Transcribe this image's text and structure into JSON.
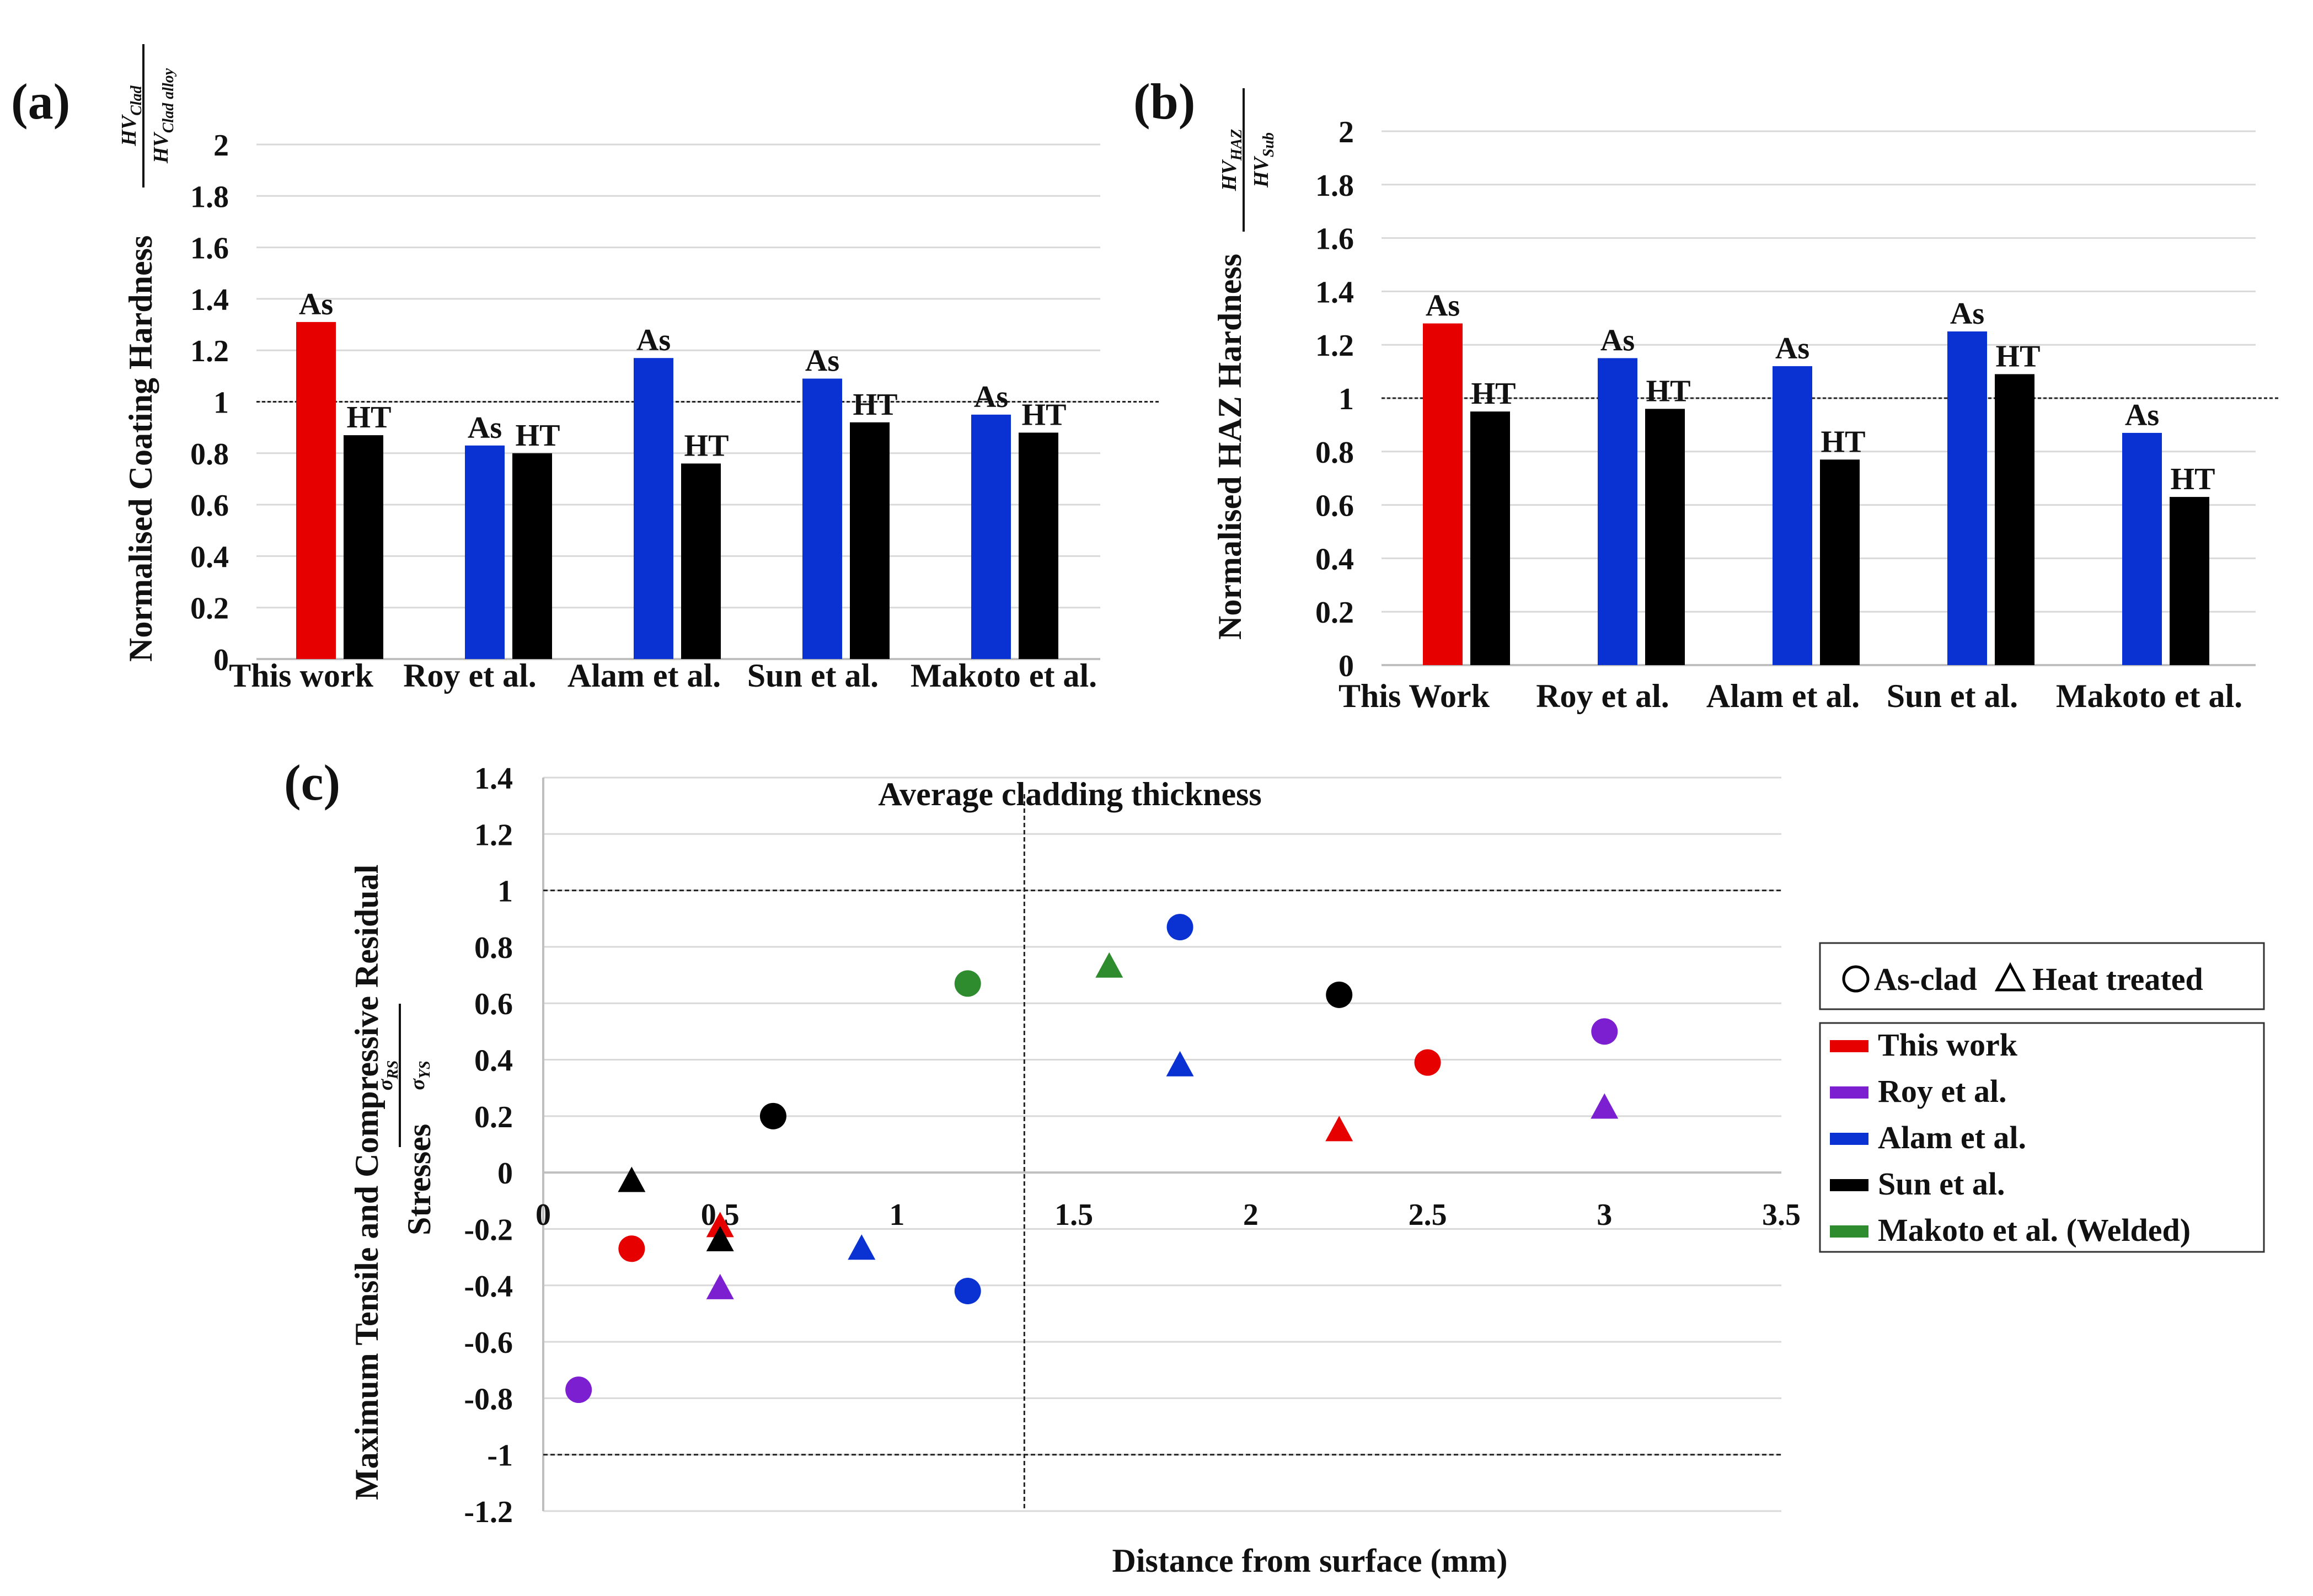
{
  "panel_a": {
    "label": "(a)",
    "ylabel": "Normalised Coating Hardness",
    "ylabel_frac": {
      "num": "HV",
      "num_sub": "Clad",
      "den": "HV",
      "den_sub": "Clad alloy"
    },
    "chart_data": {
      "type": "bar",
      "categories": [
        "This work",
        "Roy et al.",
        "Alam et al.",
        "Sun et al.",
        "Makoto et al."
      ],
      "series": [
        {
          "name": "As",
          "values": [
            1.31,
            0.83,
            1.17,
            1.09,
            0.95
          ],
          "colors": [
            "#e60000",
            "#0a32d2",
            "#0a32d2",
            "#0a32d2",
            "#0a32d2"
          ]
        },
        {
          "name": "HT",
          "values": [
            0.87,
            0.8,
            0.76,
            0.92,
            0.88
          ],
          "colors": [
            "#000000",
            "#000000",
            "#000000",
            "#000000",
            "#000000"
          ]
        }
      ],
      "ylim": [
        0,
        2
      ],
      "yticks": [
        "0",
        "0.2",
        "0.4",
        "0.6",
        "0.8",
        "1",
        "1.2",
        "1.4",
        "1.6",
        "1.8",
        "2"
      ],
      "reference_line": 1,
      "grid": true
    }
  },
  "panel_b": {
    "label": "(b)",
    "ylabel": "Normalised HAZ Hardness",
    "ylabel_frac": {
      "num": "HV",
      "num_sub": "HAZ",
      "den": "HV",
      "den_sub": "Sub"
    },
    "chart_data": {
      "type": "bar",
      "categories": [
        "This Work",
        "Roy et al.",
        "Alam et al.",
        "Sun et al.",
        "Makoto et al."
      ],
      "series": [
        {
          "name": "As",
          "values": [
            1.28,
            1.15,
            1.12,
            1.25,
            0.87
          ],
          "colors": [
            "#e60000",
            "#0a32d2",
            "#0a32d2",
            "#0a32d2",
            "#0a32d2"
          ]
        },
        {
          "name": "HT",
          "values": [
            0.95,
            0.96,
            0.77,
            1.09,
            0.63
          ],
          "colors": [
            "#000000",
            "#000000",
            "#000000",
            "#000000",
            "#000000"
          ]
        }
      ],
      "ylim": [
        0,
        2
      ],
      "yticks": [
        "0",
        "0.2",
        "0.4",
        "0.6",
        "0.8",
        "1",
        "1.2",
        "1.4",
        "1.6",
        "1.8",
        "2"
      ],
      "reference_line": 1,
      "grid": true
    }
  },
  "panel_c": {
    "label": "(c)",
    "ylabel": "Maximum Tensile and Compressive Residual",
    "ylabel2": "Stresses",
    "ylabel_frac": {
      "num": "σ",
      "num_sub": "RS",
      "den": "σ",
      "den_sub": "YS"
    },
    "chart_data": {
      "type": "scatter",
      "xlabel": "Distance from surface (mm)",
      "annotation": "Average cladding thickness",
      "vertical_line_x": 1.36,
      "hlines": [
        1,
        -1
      ],
      "xlim": [
        0,
        3.5
      ],
      "ylim": [
        -1.2,
        1.4
      ],
      "xticks": [
        "0",
        "0.5",
        "1",
        "1.5",
        "2",
        "2.5",
        "3",
        "3.5"
      ],
      "yticks": [
        "-1.2",
        "-1",
        "-0.8",
        "-0.6",
        "-0.4",
        "-0.2",
        "0",
        "0.2",
        "0.4",
        "0.6",
        "0.8",
        "1",
        "1.2",
        "1.4"
      ],
      "series": [
        {
          "name": "This work",
          "color": "#e60000",
          "points": [
            {
              "x": 0.25,
              "y": -0.27,
              "m": "circle"
            },
            {
              "x": 2.5,
              "y": 0.39,
              "m": "circle"
            },
            {
              "x": 0.5,
              "y": -0.19,
              "m": "triangle"
            },
            {
              "x": 2.25,
              "y": 0.15,
              "m": "triangle"
            }
          ]
        },
        {
          "name": "Roy et al.",
          "color": "#7b1fd1",
          "points": [
            {
              "x": 0.1,
              "y": -0.77,
              "m": "circle"
            },
            {
              "x": 3.0,
              "y": 0.5,
              "m": "circle"
            },
            {
              "x": 0.5,
              "y": -0.41,
              "m": "triangle"
            },
            {
              "x": 3.0,
              "y": 0.23,
              "m": "triangle"
            }
          ]
        },
        {
          "name": "Alam et al.",
          "color": "#0a32d2",
          "points": [
            {
              "x": 1.2,
              "y": -0.42,
              "m": "circle"
            },
            {
              "x": 1.8,
              "y": 0.87,
              "m": "circle"
            },
            {
              "x": 0.9,
              "y": -0.27,
              "m": "triangle"
            },
            {
              "x": 1.8,
              "y": 0.38,
              "m": "triangle"
            }
          ]
        },
        {
          "name": "Sun et al.",
          "color": "#000000",
          "points": [
            {
              "x": 0.65,
              "y": 0.2,
              "m": "circle"
            },
            {
              "x": 2.25,
              "y": 0.63,
              "m": "circle"
            },
            {
              "x": 0.25,
              "y": -0.03,
              "m": "triangle"
            },
            {
              "x": 0.5,
              "y": -0.24,
              "m": "triangle"
            }
          ]
        },
        {
          "name": "Makoto et al. (Welded)",
          "color": "#2e8b2e",
          "points": [
            {
              "x": 1.2,
              "y": 0.67,
              "m": "circle"
            },
            {
              "x": 1.6,
              "y": 0.73,
              "m": "triangle"
            }
          ]
        }
      ],
      "marker_legend": {
        "circle": "As-clad",
        "triangle": "Heat treated"
      }
    }
  }
}
